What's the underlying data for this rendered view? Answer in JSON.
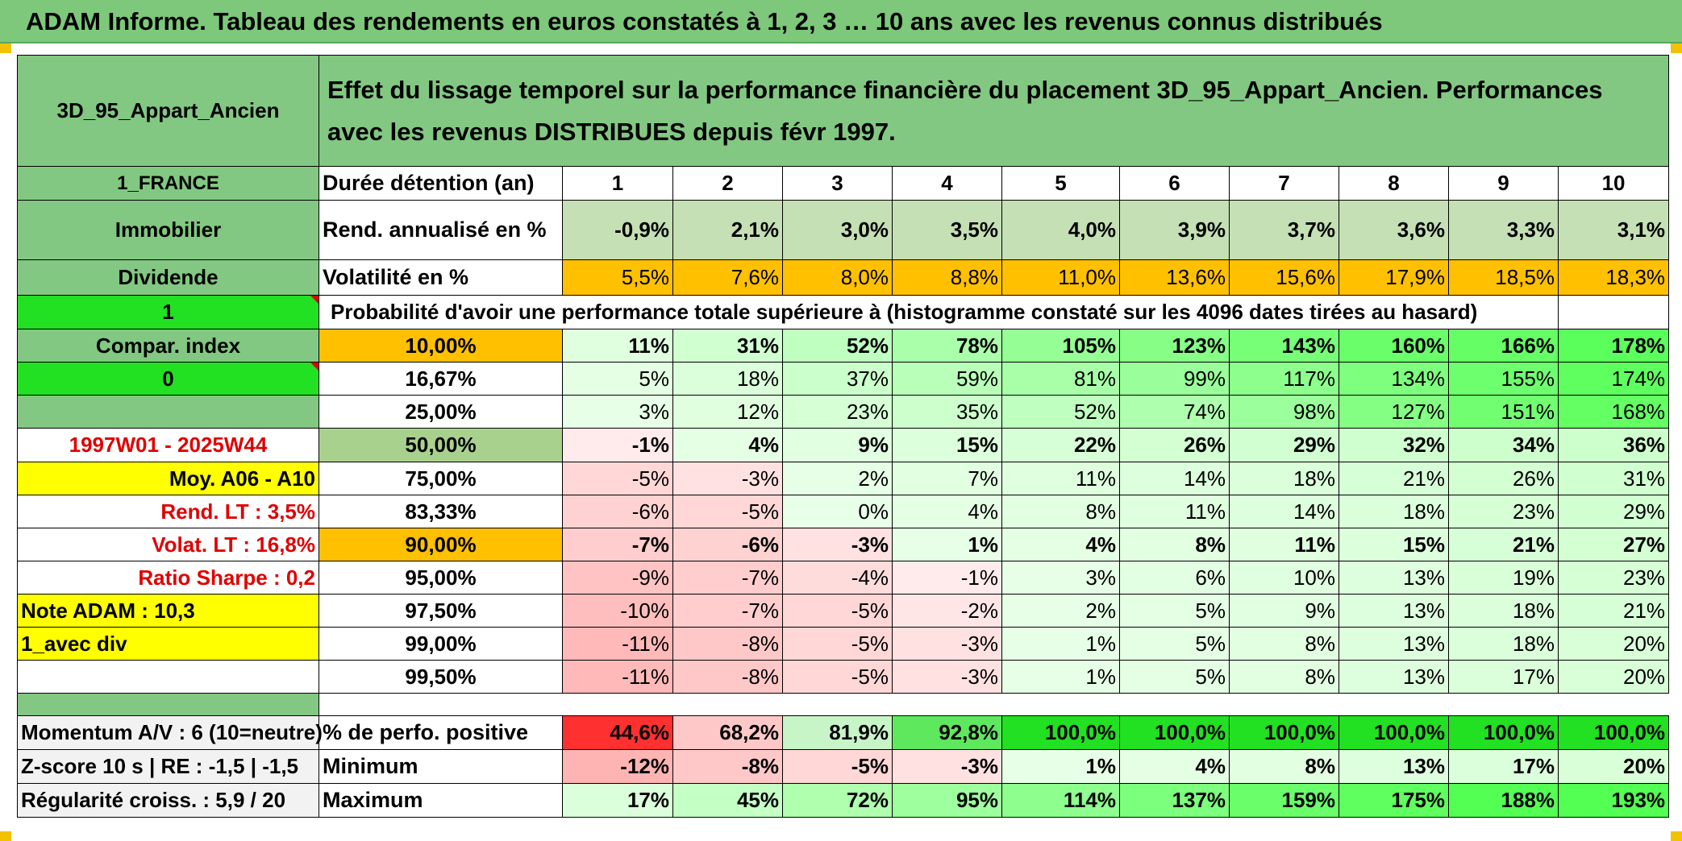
{
  "title": "ADAM Informe. Tableau des rendements en euros constatés à 1, 2, 3 … 10 ans avec les revenus connus distribués",
  "asset_name": "3D_95_Appart_Ancien",
  "description": "Effet du lissage temporel sur la performance financière du placement 3D_95_Appart_Ancien. Performances avec les revenus DISTRIBUES depuis févr 1997.",
  "left_labels": {
    "country": "1_FRANCE",
    "category": "Immobilier",
    "income": "Dividende",
    "field_one": "1",
    "compar": "Compar. index",
    "field_zero": "0",
    "period": "1997W01 - 2025W44",
    "moy": "Moy. A06 - A10",
    "rend_lt": "Rend. LT :   3,5%",
    "volat_lt": "Volat. LT :   16,8%",
    "sharpe": "Ratio Sharpe :    0,2",
    "note": "Note ADAM : 10,3",
    "avec_div": "1_avec div"
  },
  "duration_label": "Durée détention (an)",
  "years": [
    "1",
    "2",
    "3",
    "4",
    "5",
    "6",
    "7",
    "8",
    "9",
    "10"
  ],
  "rend_label": "Rend. annualisé en %",
  "rend": [
    "-0,9%",
    "2,1%",
    "3,0%",
    "3,5%",
    "4,0%",
    "3,9%",
    "3,7%",
    "3,6%",
    "3,3%",
    "3,1%"
  ],
  "vol_label": "Volatilité en %",
  "vol": [
    "5,5%",
    "7,6%",
    "8,0%",
    "8,8%",
    "11,0%",
    "13,6%",
    "15,6%",
    "17,9%",
    "18,5%",
    "18,3%"
  ],
  "prob_label": "Probabilité d'avoir une performance totale supérieure à (histogramme constaté sur les 4096 dates tirées au hasard)",
  "percentile_rows": [
    {
      "pct": "10,00%",
      "values": [
        "11%",
        "31%",
        "52%",
        "78%",
        "105%",
        "123%",
        "143%",
        "160%",
        "166%",
        "178%"
      ]
    },
    {
      "pct": "16,67%",
      "values": [
        "5%",
        "18%",
        "37%",
        "59%",
        "81%",
        "99%",
        "117%",
        "134%",
        "155%",
        "174%"
      ]
    },
    {
      "pct": "25,00%",
      "values": [
        "3%",
        "12%",
        "23%",
        "35%",
        "52%",
        "74%",
        "98%",
        "127%",
        "151%",
        "168%"
      ]
    },
    {
      "pct": "50,00%",
      "values": [
        "-1%",
        "4%",
        "9%",
        "15%",
        "22%",
        "26%",
        "29%",
        "32%",
        "34%",
        "36%"
      ]
    },
    {
      "pct": "75,00%",
      "values": [
        "-5%",
        "-3%",
        "2%",
        "7%",
        "11%",
        "14%",
        "18%",
        "21%",
        "26%",
        "31%"
      ]
    },
    {
      "pct": "83,33%",
      "values": [
        "-6%",
        "-5%",
        "0%",
        "4%",
        "8%",
        "11%",
        "14%",
        "18%",
        "23%",
        "29%"
      ]
    },
    {
      "pct": "90,00%",
      "values": [
        "-7%",
        "-6%",
        "-3%",
        "1%",
        "4%",
        "8%",
        "11%",
        "15%",
        "21%",
        "27%"
      ]
    },
    {
      "pct": "95,00%",
      "values": [
        "-9%",
        "-7%",
        "-4%",
        "-1%",
        "3%",
        "6%",
        "10%",
        "13%",
        "19%",
        "23%"
      ]
    },
    {
      "pct": "97,50%",
      "values": [
        "-10%",
        "-7%",
        "-5%",
        "-2%",
        "2%",
        "5%",
        "9%",
        "13%",
        "18%",
        "21%"
      ]
    },
    {
      "pct": "99,00%",
      "values": [
        "-11%",
        "-8%",
        "-5%",
        "-3%",
        "1%",
        "5%",
        "8%",
        "13%",
        "18%",
        "20%"
      ]
    },
    {
      "pct": "99,50%",
      "values": [
        "-11%",
        "-8%",
        "-5%",
        "-3%",
        "1%",
        "5%",
        "8%",
        "13%",
        "17%",
        "20%"
      ]
    }
  ],
  "bottom": {
    "momentum": "Momentum A/V : 6 (10=neutre)",
    "zscore": "Z-score 10 s | RE : -1,5 | -1,5",
    "regularite": "Régularité croiss. : 5,9 / 20",
    "positive_label": "% de perfo. positive",
    "positive": [
      "44,6%",
      "68,2%",
      "81,9%",
      "92,8%",
      "100,0%",
      "100,0%",
      "100,0%",
      "100,0%",
      "100,0%",
      "100,0%"
    ],
    "min_label": "Minimum",
    "min": [
      "-12%",
      "-8%",
      "-5%",
      "-3%",
      "1%",
      "4%",
      "8%",
      "13%",
      "17%",
      "20%"
    ],
    "max_label": "Maximum",
    "max": [
      "17%",
      "45%",
      "72%",
      "95%",
      "114%",
      "137%",
      "159%",
      "175%",
      "188%",
      "193%"
    ]
  }
}
